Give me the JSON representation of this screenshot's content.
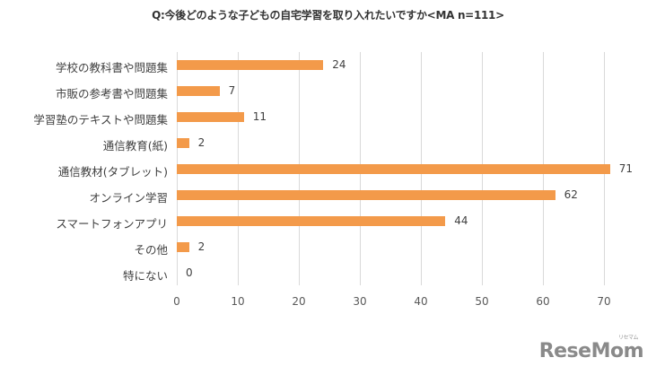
{
  "chart_data": {
    "type": "bar",
    "orientation": "horizontal",
    "title": "Q:今後どのような子どもの自宅学習を取り入れたいですか<MA n=111>",
    "xlabel": "",
    "ylabel": "",
    "xlim": [
      0,
      70
    ],
    "xticks": [
      0,
      10,
      20,
      30,
      40,
      50,
      60,
      70
    ],
    "grid": true,
    "legend": null,
    "bar_color": "#f39a4a",
    "categories": [
      "学校の教科書や問題集",
      "市販の参考書や問題集",
      "学習塾のテキストや問題集",
      "通信教育(紙)",
      "通信教材(タブレット)",
      "オンライン学習",
      "スマートフォンアプリ",
      "その他",
      "特にない"
    ],
    "values": [
      24,
      7,
      11,
      2,
      71,
      62,
      44,
      2,
      0
    ]
  },
  "labels": {
    "title": "Q:今後どのような子どもの自宅学習を取り入れたいですか<MA n=111>",
    "cat": [
      "学校の教科書や問題集",
      "市販の参考書や問題集",
      "学習塾のテキストや問題集",
      "通信教育(紙)",
      "通信教材(タブレット)",
      "オンライン学習",
      "スマートフォンアプリ",
      "その他",
      "特にない"
    ],
    "val": [
      "24",
      "7",
      "11",
      "2",
      "71",
      "62",
      "44",
      "2",
      "0"
    ],
    "ticks": [
      "0",
      "10",
      "20",
      "30",
      "40",
      "50",
      "60",
      "70"
    ]
  },
  "watermark": {
    "brand": "ReseMom",
    "kana": "リセマム"
  }
}
